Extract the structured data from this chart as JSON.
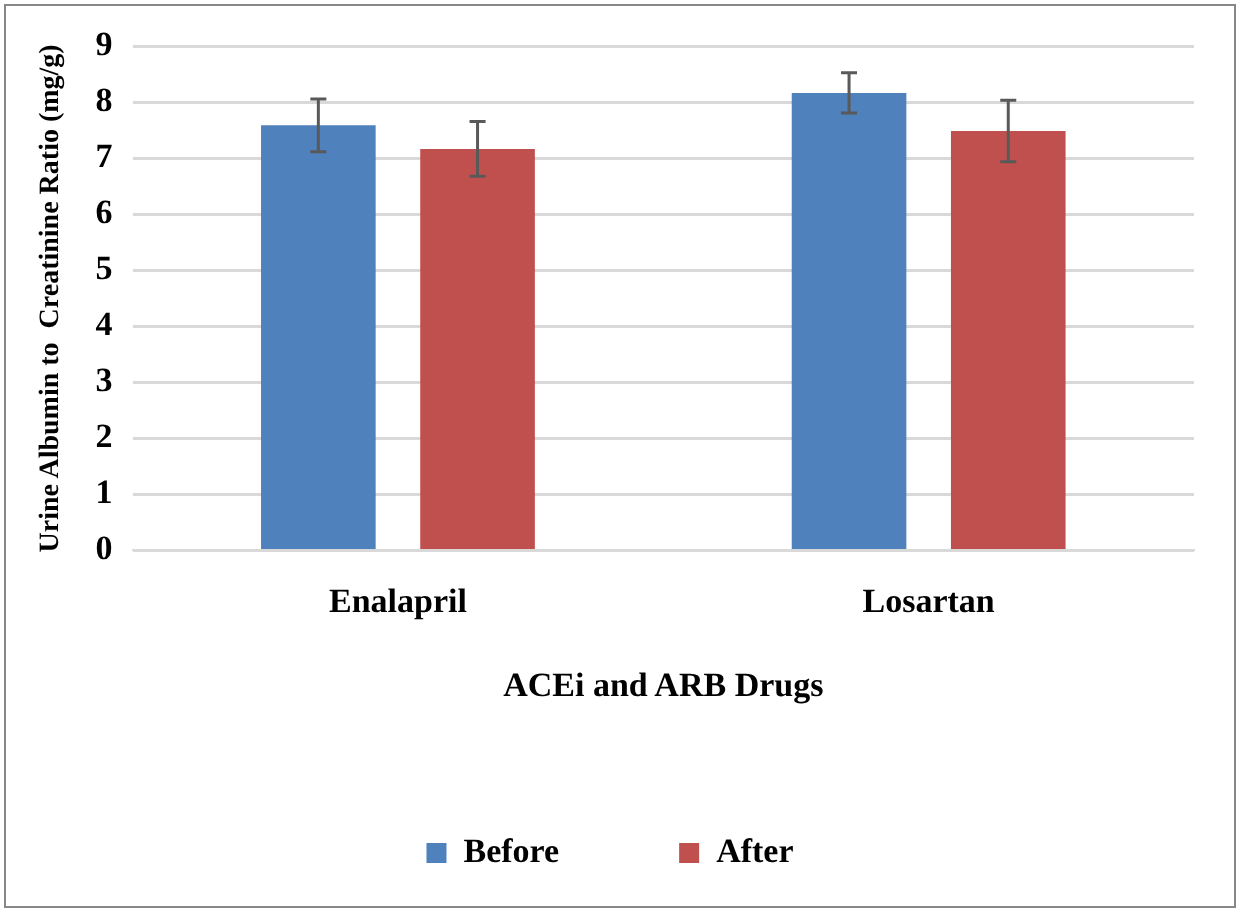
{
  "chart_data": {
    "type": "bar",
    "xlabel": "ACEi and ARB Drugs",
    "ylabel": "Urine Albumin to  Creatinine Ratio (mg/g)",
    "categories": [
      "Enalapril",
      "Losartan"
    ],
    "series": [
      {
        "name": "Before",
        "color": "#4f81bd",
        "values": [
          7.59,
          8.17
        ],
        "errors": [
          0.47,
          0.36
        ]
      },
      {
        "name": "After",
        "color": "#c0504d",
        "values": [
          7.17,
          7.49
        ],
        "errors": [
          0.49,
          0.55
        ]
      }
    ],
    "ylim": [
      0,
      9
    ],
    "yticks": [
      0,
      1,
      2,
      3,
      4,
      5,
      6,
      7,
      8,
      9
    ],
    "grid": "y",
    "legend": "bottom"
  }
}
